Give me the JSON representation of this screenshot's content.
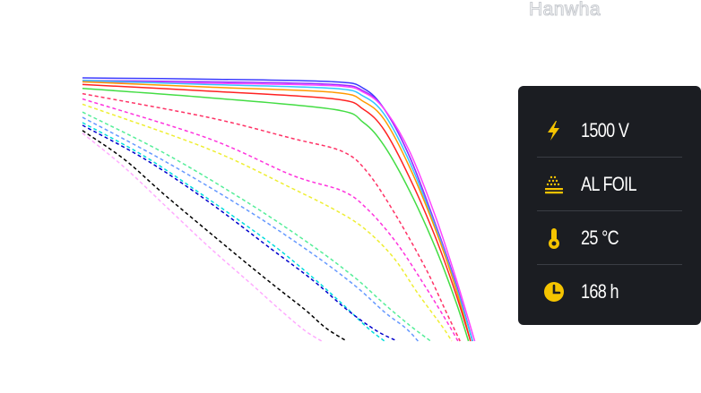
{
  "brand": {
    "logo_text": "Hanwha",
    "logo_color": "#c9ccd1"
  },
  "conditions_panel": {
    "background": "#1b1d22",
    "icon_color": "#f5c400",
    "items": [
      {
        "icon": "lightning-bolt-icon",
        "value": "1500 V"
      },
      {
        "icon": "al-foil-icon",
        "value": "AL FOIL"
      },
      {
        "icon": "thermometer-icon",
        "value": "25 °C"
      },
      {
        "icon": "clock-icon",
        "value": "168 h"
      }
    ]
  },
  "chart_data": {
    "type": "line",
    "title": "",
    "xlabel": "",
    "ylabel": "",
    "xlim": [
      0,
      1
    ],
    "ylim": [
      0,
      1
    ],
    "grid": false,
    "legend": "none",
    "series": [
      {
        "color": "#3b3bff",
        "dash": false,
        "points": [
          [
            0,
            1.0
          ],
          [
            0.3,
            0.995
          ],
          [
            0.6,
            0.985
          ],
          [
            0.67,
            0.96
          ],
          [
            0.72,
            0.88
          ],
          [
            0.78,
            0.7
          ],
          [
            0.84,
            0.45
          ],
          [
            0.89,
            0.22
          ],
          [
            0.93,
            0.0
          ]
        ]
      },
      {
        "color": "#9b30ff",
        "dash": false,
        "points": [
          [
            0,
            0.99
          ],
          [
            0.3,
            0.985
          ],
          [
            0.6,
            0.975
          ],
          [
            0.67,
            0.95
          ],
          [
            0.72,
            0.88
          ],
          [
            0.78,
            0.7
          ],
          [
            0.84,
            0.45
          ],
          [
            0.89,
            0.22
          ],
          [
            0.93,
            0.0
          ]
        ]
      },
      {
        "color": "#ff44ff",
        "dash": false,
        "points": [
          [
            0,
            0.985
          ],
          [
            0.3,
            0.98
          ],
          [
            0.6,
            0.97
          ],
          [
            0.67,
            0.945
          ],
          [
            0.72,
            0.88
          ],
          [
            0.78,
            0.72
          ],
          [
            0.84,
            0.48
          ],
          [
            0.89,
            0.24
          ],
          [
            0.935,
            0.0
          ]
        ]
      },
      {
        "color": "#33c8ff",
        "dash": false,
        "points": [
          [
            0,
            0.99
          ],
          [
            0.3,
            0.975
          ],
          [
            0.6,
            0.96
          ],
          [
            0.67,
            0.93
          ],
          [
            0.72,
            0.86
          ],
          [
            0.78,
            0.68
          ],
          [
            0.84,
            0.44
          ],
          [
            0.89,
            0.21
          ],
          [
            0.93,
            0.0
          ]
        ]
      },
      {
        "color": "#ff9900",
        "dash": false,
        "points": [
          [
            0,
            0.985
          ],
          [
            0.3,
            0.965
          ],
          [
            0.6,
            0.945
          ],
          [
            0.67,
            0.91
          ],
          [
            0.72,
            0.84
          ],
          [
            0.78,
            0.66
          ],
          [
            0.84,
            0.43
          ],
          [
            0.89,
            0.2
          ],
          [
            0.925,
            0.0
          ]
        ]
      },
      {
        "color": "#ff2222",
        "dash": false,
        "points": [
          [
            0,
            0.975
          ],
          [
            0.3,
            0.95
          ],
          [
            0.6,
            0.92
          ],
          [
            0.67,
            0.88
          ],
          [
            0.72,
            0.8
          ],
          [
            0.78,
            0.62
          ],
          [
            0.84,
            0.4
          ],
          [
            0.89,
            0.18
          ],
          [
            0.925,
            0.0
          ]
        ]
      },
      {
        "color": "#44dd44",
        "dash": false,
        "points": [
          [
            0,
            0.96
          ],
          [
            0.3,
            0.925
          ],
          [
            0.6,
            0.88
          ],
          [
            0.67,
            0.83
          ],
          [
            0.72,
            0.74
          ],
          [
            0.78,
            0.57
          ],
          [
            0.84,
            0.36
          ],
          [
            0.89,
            0.15
          ],
          [
            0.92,
            0.0
          ]
        ]
      },
      {
        "color": "#ff3366",
        "dash": true,
        "points": [
          [
            0,
            0.94
          ],
          [
            0.3,
            0.85
          ],
          [
            0.5,
            0.77
          ],
          [
            0.62,
            0.72
          ],
          [
            0.68,
            0.64
          ],
          [
            0.75,
            0.47
          ],
          [
            0.82,
            0.27
          ],
          [
            0.87,
            0.1
          ],
          [
            0.9,
            0.0
          ]
        ]
      },
      {
        "color": "#ff33dd",
        "dash": true,
        "points": [
          [
            0,
            0.92
          ],
          [
            0.3,
            0.77
          ],
          [
            0.5,
            0.63
          ],
          [
            0.62,
            0.57
          ],
          [
            0.68,
            0.5
          ],
          [
            0.75,
            0.37
          ],
          [
            0.82,
            0.2
          ],
          [
            0.87,
            0.07
          ],
          [
            0.895,
            0.0
          ]
        ]
      },
      {
        "color": "#eeee33",
        "dash": true,
        "points": [
          [
            0,
            0.9
          ],
          [
            0.3,
            0.73
          ],
          [
            0.5,
            0.58
          ],
          [
            0.6,
            0.5
          ],
          [
            0.67,
            0.43
          ],
          [
            0.74,
            0.32
          ],
          [
            0.8,
            0.18
          ],
          [
            0.86,
            0.05
          ],
          [
            0.88,
            0.0
          ]
        ]
      },
      {
        "color": "#55ee99",
        "dash": true,
        "points": [
          [
            0,
            0.87
          ],
          [
            0.2,
            0.71
          ],
          [
            0.4,
            0.52
          ],
          [
            0.55,
            0.36
          ],
          [
            0.65,
            0.24
          ],
          [
            0.72,
            0.14
          ],
          [
            0.78,
            0.06
          ],
          [
            0.83,
            0.0
          ]
        ]
      },
      {
        "color": "#6699ff",
        "dash": true,
        "points": [
          [
            0,
            0.85
          ],
          [
            0.2,
            0.68
          ],
          [
            0.4,
            0.49
          ],
          [
            0.55,
            0.33
          ],
          [
            0.65,
            0.21
          ],
          [
            0.72,
            0.11
          ],
          [
            0.77,
            0.05
          ],
          [
            0.8,
            0.0
          ]
        ]
      },
      {
        "color": "#00dddd",
        "dash": true,
        "points": [
          [
            0,
            0.83
          ],
          [
            0.15,
            0.7
          ],
          [
            0.3,
            0.54
          ],
          [
            0.45,
            0.37
          ],
          [
            0.55,
            0.24
          ],
          [
            0.62,
            0.14
          ],
          [
            0.68,
            0.05
          ],
          [
            0.72,
            0.0
          ]
        ]
      },
      {
        "color": "#0000cc",
        "dash": true,
        "points": [
          [
            0,
            0.82
          ],
          [
            0.15,
            0.69
          ],
          [
            0.3,
            0.53
          ],
          [
            0.45,
            0.35
          ],
          [
            0.55,
            0.23
          ],
          [
            0.63,
            0.12
          ],
          [
            0.7,
            0.04
          ],
          [
            0.75,
            0.0
          ]
        ]
      },
      {
        "color": "#000000",
        "dash": true,
        "points": [
          [
            0,
            0.8
          ],
          [
            0.1,
            0.69
          ],
          [
            0.2,
            0.55
          ],
          [
            0.35,
            0.35
          ],
          [
            0.45,
            0.22
          ],
          [
            0.53,
            0.12
          ],
          [
            0.58,
            0.05
          ],
          [
            0.63,
            0.0
          ]
        ]
      },
      {
        "color": "#ffaaff",
        "dash": true,
        "points": [
          [
            0,
            0.79
          ],
          [
            0.1,
            0.66
          ],
          [
            0.2,
            0.51
          ],
          [
            0.3,
            0.36
          ],
          [
            0.4,
            0.22
          ],
          [
            0.47,
            0.12
          ],
          [
            0.53,
            0.04
          ],
          [
            0.57,
            0.0
          ]
        ]
      }
    ]
  }
}
